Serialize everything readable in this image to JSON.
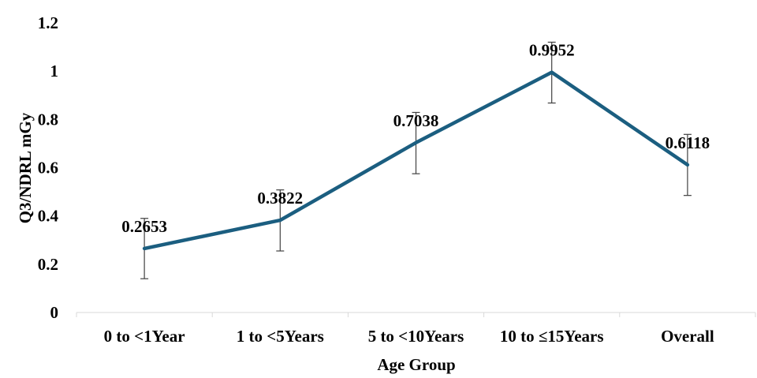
{
  "chart_data": {
    "type": "line",
    "title": "",
    "xlabel": "Age Group",
    "ylabel": "Q3/NDRL mGy",
    "categories": [
      "0 to <1Year",
      "1 to <5Years",
      "5 to <10Years",
      "10 to ≤15Years",
      "Overall"
    ],
    "series": [
      {
        "values": [
          0.2653,
          0.3822,
          0.7038,
          0.9952,
          0.6118
        ],
        "error_low": [
          0.14,
          0.255,
          0.575,
          0.868,
          0.485
        ],
        "error_high": [
          0.39,
          0.508,
          0.829,
          1.12,
          0.738
        ],
        "data_labels": [
          "0.2653",
          "0.3822",
          "0.7038",
          "0.9952",
          "0.6118"
        ],
        "color": "#1b5e80"
      }
    ],
    "yticks": [
      "0",
      "0.2",
      "0.4",
      "0.6",
      "0.8",
      "1",
      "1.2"
    ],
    "ylim": [
      0,
      1.2
    ],
    "grid": false,
    "legend": "none"
  }
}
